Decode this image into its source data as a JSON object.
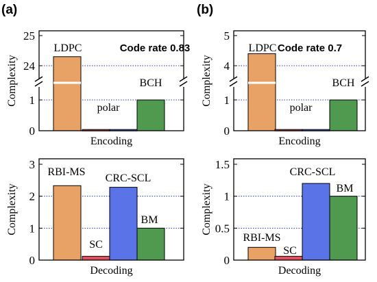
{
  "figure": {
    "panels": [
      "(a)",
      "(b)"
    ]
  },
  "colors": {
    "LDPC": "#E9A266",
    "polar": "#E2505E",
    "SC": "#E2505E",
    "BCH": "#4F9A4F",
    "BM": "#4F9A4F",
    "RBI-MS": "#E9A266",
    "CRC-SCL": "#5A73E6",
    "grid": "#2233CC"
  },
  "chart_data": [
    {
      "id": "a-enc",
      "panel": "(a)",
      "type": "bar",
      "broken_axis": true,
      "ylabel": "Complexity",
      "xlabel": "Encoding",
      "annotation": "Code rate 0.83",
      "categories": [
        "LDPC",
        "polar",
        "polar",
        "BCH"
      ],
      "values": [
        24.3,
        0.04,
        0.04,
        1.0
      ],
      "yticks_upper": [
        "25",
        "24"
      ],
      "yticks_lower": [
        "1",
        "0"
      ],
      "labels": [
        "LDPC",
        "polar",
        "BCH"
      ]
    },
    {
      "id": "b-enc",
      "panel": "(b)",
      "type": "bar",
      "broken_axis": true,
      "ylabel": "Complexity",
      "xlabel": "Encoding",
      "annotation": "Code rate 0.7",
      "categories": [
        "LDPC",
        "polar",
        "polar",
        "BCH"
      ],
      "values": [
        4.4,
        0.04,
        0.04,
        1.0
      ],
      "yticks_upper": [
        "5",
        "4"
      ],
      "yticks_lower": [
        "1",
        "0"
      ],
      "labels": [
        "LDPC",
        "polar",
        "BCH"
      ]
    },
    {
      "id": "a-dec",
      "panel": "(a)",
      "type": "bar",
      "ylabel": "Complexity",
      "xlabel": "Decoding",
      "categories": [
        "RBI-MS",
        "SC",
        "CRC-SCL",
        "BM"
      ],
      "values": [
        2.33,
        0.12,
        2.28,
        1.0
      ],
      "ylim": [
        0,
        3
      ],
      "yticks": [
        "0",
        "1",
        "2",
        "3"
      ]
    },
    {
      "id": "b-dec",
      "panel": "(b)",
      "type": "bar",
      "ylabel": "Complexity",
      "xlabel": "Decoding",
      "categories": [
        "RBI-MS",
        "SC",
        "CRC-SCL",
        "BM"
      ],
      "values": [
        0.2,
        0.06,
        1.2,
        1.0
      ],
      "ylim": [
        0,
        1.5
      ],
      "yticks": [
        "0",
        "0.5",
        "1",
        "1.5"
      ]
    }
  ]
}
